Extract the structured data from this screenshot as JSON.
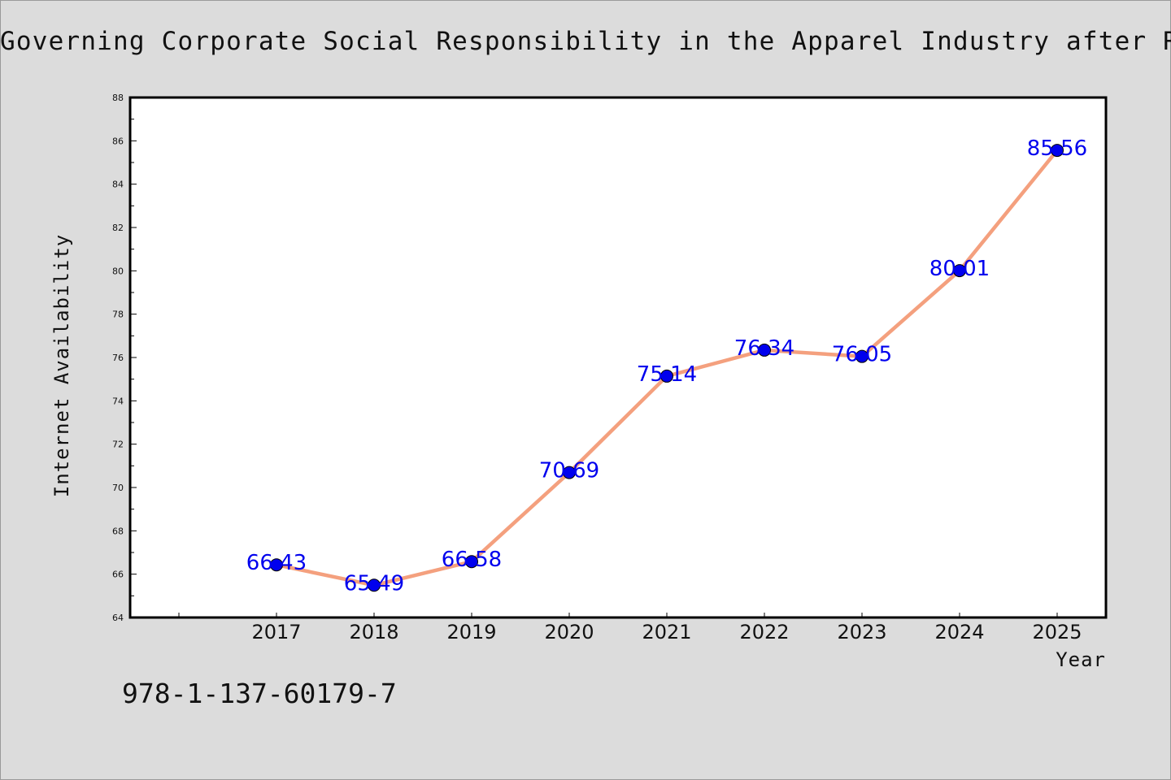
{
  "title": "Governing Corporate Social Responsibility in the Apparel Industry after Rana Plaza",
  "isbn": "978-1-137-60179-7",
  "chart_data": {
    "type": "line",
    "title": "Governing Corporate Social Responsibility in the Apparel Industry after Rana Plaza",
    "xlabel": "Year",
    "ylabel": "Internet Availability",
    "categories": [
      "2017",
      "2018",
      "2019",
      "2020",
      "2021",
      "2022",
      "2023",
      "2024",
      "2025"
    ],
    "values": [
      66.43,
      65.49,
      66.58,
      70.69,
      75.14,
      76.34,
      76.05,
      80.01,
      85.56
    ],
    "data_labels": [
      "66.43",
      "65.49",
      "66.58",
      "70.69",
      "75.14",
      "76.34",
      "76.05",
      "80.01",
      "85.56"
    ],
    "ylim": [
      64,
      88
    ],
    "yticks": [
      "64",
      "66",
      "68",
      "70",
      "72",
      "74",
      "76",
      "78",
      "80",
      "82",
      "84",
      "86",
      "88"
    ],
    "grid": false,
    "colors": {
      "line": "#f4a07e",
      "marker": "#0000ee",
      "label": "#0000ee",
      "background": "#dcdcdc",
      "plot_background": "#ffffff"
    }
  }
}
